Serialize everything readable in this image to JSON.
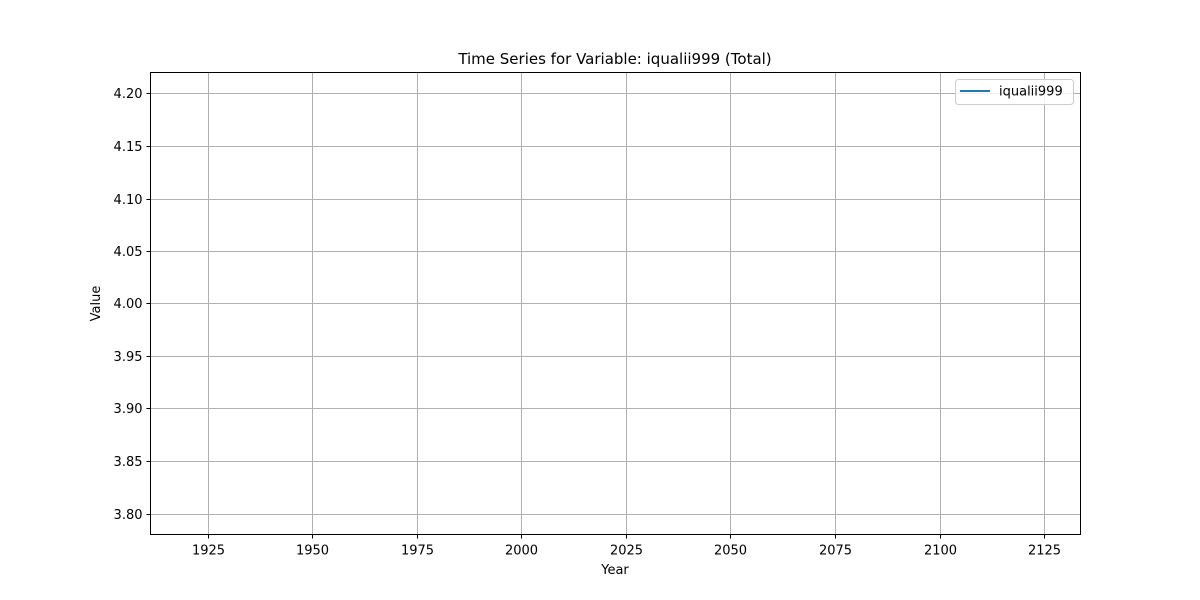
{
  "chart_data": {
    "type": "line",
    "title": "Time Series for Variable: iqualii999 (Total)",
    "xlabel": "Year",
    "ylabel": "Value",
    "xlim": [
      1911.3,
      2133.7
    ],
    "ylim": [
      3.78,
      4.22
    ],
    "xticks": [
      1925,
      1950,
      1975,
      2000,
      2025,
      2050,
      2075,
      2100,
      2125
    ],
    "xtick_labels": [
      "1925",
      "1950",
      "1975",
      "2000",
      "2025",
      "2050",
      "2075",
      "2100",
      "2125"
    ],
    "yticks": [
      3.8,
      3.85,
      3.9,
      3.95,
      4.0,
      4.05,
      4.1,
      4.15,
      4.2
    ],
    "ytick_labels": [
      "3.80",
      "3.85",
      "3.90",
      "3.95",
      "4.00",
      "4.05",
      "4.10",
      "4.15",
      "4.20"
    ],
    "grid": true,
    "legend_position": "top-right",
    "series": [
      {
        "name": "iqualii999",
        "color": "#1f77b4",
        "x": [],
        "y": []
      }
    ]
  }
}
